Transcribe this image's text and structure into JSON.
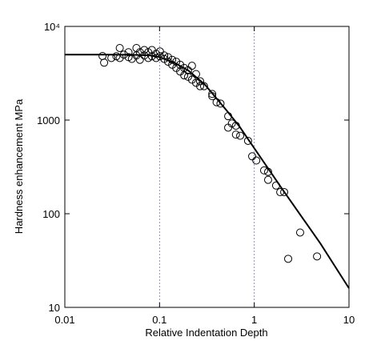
{
  "chart_data": {
    "type": "scatter-line",
    "x_label": "Relative Indentation Depth",
    "y_label": "Hardness enhancement MPa",
    "log_x": true,
    "log_y": true,
    "xlim": [
      0.01,
      10
    ],
    "ylim": [
      10,
      10000
    ],
    "xticks": [
      0.01,
      0.1,
      1,
      10
    ],
    "yticks": [
      10,
      100,
      1000,
      {
        "value": 10000,
        "label": "10⁴"
      }
    ],
    "vlines": [
      0.1,
      1
    ],
    "line": {
      "color": "#000000",
      "x": [
        0.01,
        0.05,
        0.08,
        0.1,
        0.15,
        0.2,
        0.3,
        0.5,
        0.7,
        1,
        2,
        5,
        10
      ],
      "y": [
        5000,
        4990,
        4900,
        4700,
        4000,
        3400,
        2400,
        1300,
        850,
        500,
        180,
        48,
        16
      ]
    },
    "points": {
      "color": "#000000",
      "x": [
        0.025,
        0.026,
        0.031,
        0.035,
        0.038,
        0.038,
        0.042,
        0.047,
        0.047,
        0.051,
        0.057,
        0.057,
        0.062,
        0.062,
        0.069,
        0.069,
        0.076,
        0.076,
        0.083,
        0.083,
        0.092,
        0.092,
        0.101,
        0.101,
        0.112,
        0.112,
        0.123,
        0.123,
        0.136,
        0.136,
        0.15,
        0.15,
        0.165,
        0.165,
        0.182,
        0.182,
        0.2,
        0.2,
        0.22,
        0.22,
        0.243,
        0.243,
        0.268,
        0.268,
        0.295,
        0.36,
        0.36,
        0.4,
        0.44,
        0.53,
        0.53,
        0.58,
        0.64,
        0.64,
        0.71,
        0.86,
        0.95,
        1.05,
        1.27,
        1.4,
        1.4,
        1.7,
        1.88,
        2.07,
        2.28,
        3.05,
        4.6
      ],
      "y": [
        4830,
        4100,
        4600,
        4800,
        5880,
        4600,
        5000,
        4700,
        5300,
        4500,
        4900,
        5880,
        4400,
        5300,
        4900,
        5600,
        4600,
        5300,
        4800,
        5600,
        5100,
        4600,
        4800,
        5400,
        4500,
        4900,
        4200,
        4700,
        3900,
        4400,
        3600,
        4200,
        3300,
        3900,
        3000,
        3600,
        2900,
        3400,
        2700,
        3800,
        2500,
        3100,
        2300,
        2600,
        2300,
        1900,
        1800,
        1550,
        1500,
        1100,
        830,
        920,
        870,
        700,
        680,
        600,
        410,
        370,
        290,
        280,
        230,
        200,
        170,
        170,
        33,
        63,
        35
      ]
    }
  }
}
